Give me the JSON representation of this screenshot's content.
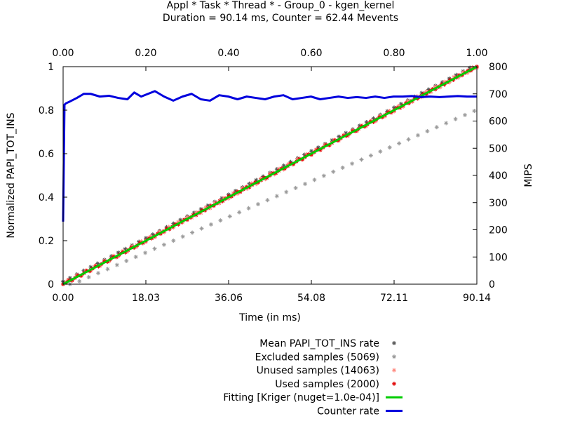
{
  "title_line1": "Appl * Task * Thread * - Group_0 - kgen_kernel",
  "title_line2": "Duration = 90.14 ms, Counter = 62.44 Mevents",
  "chart_data": {
    "type": "scatter",
    "xlabel": "Time (in ms)",
    "ylabel": "Normalized PAPI_TOT_INS",
    "y2label": "MIPS",
    "xlim": [
      0,
      90.14
    ],
    "ylim": [
      0,
      1
    ],
    "x2lim": [
      0,
      1
    ],
    "y2lim": [
      0,
      800
    ],
    "x_ticks": [
      "0.00",
      "18.03",
      "36.06",
      "54.08",
      "72.11",
      "90.14"
    ],
    "x2_ticks": [
      "0.00",
      "0.20",
      "0.40",
      "0.60",
      "0.80",
      "1.00"
    ],
    "y_ticks": [
      "0",
      "0.2",
      "0.4",
      "0.6",
      "0.8",
      "1"
    ],
    "y2_ticks": [
      "0",
      "100",
      "200",
      "300",
      "400",
      "500",
      "600",
      "700",
      "800"
    ],
    "grid": false,
    "legend_position": "bottom-right",
    "series": [
      {
        "name": "Mean PAPI_TOT_INS rate",
        "kind": "points",
        "color": "#555555"
      },
      {
        "name": "Excluded samples (5069)",
        "kind": "points",
        "color": "#999999",
        "description_points": [
          [
            0,
            0
          ],
          [
            90.14,
            0.82
          ]
        ]
      },
      {
        "name": "Unused samples (14063)",
        "kind": "points",
        "color": "#ff8a80"
      },
      {
        "name": "Used samples (2000)",
        "kind": "points",
        "color": "#e00000"
      },
      {
        "name": "Fitting [Kriger (nuget=1.0e-04)]",
        "kind": "line",
        "color": "#00cc00",
        "x": [
          0,
          90.14
        ],
        "y": [
          0,
          1
        ]
      },
      {
        "name": "Counter rate",
        "kind": "line",
        "axis": "y2",
        "color": "#0000dd",
        "x": [
          0,
          0.3,
          0.6,
          1.5,
          3.0,
          4.5,
          6.0,
          8.0,
          10.0,
          12.0,
          14.0,
          15.5,
          17.0,
          18.5,
          20.0,
          22.0,
          24.0,
          26.0,
          28.0,
          30.0,
          32.0,
          34.0,
          36.0,
          38.0,
          40.0,
          42.0,
          44.0,
          46.0,
          48.0,
          50.0,
          52.0,
          54.0,
          56.0,
          58.0,
          60.0,
          62.0,
          64.0,
          66.0,
          68.0,
          70.0,
          72.0,
          74.0,
          76.0,
          78.0,
          80.0,
          82.0,
          84.0,
          86.0,
          88.0,
          90.14
        ],
        "y": [
          230,
          660,
          665,
          672,
          685,
          700,
          700,
          690,
          693,
          685,
          680,
          705,
          690,
          700,
          710,
          690,
          675,
          690,
          700,
          680,
          675,
          695,
          690,
          680,
          690,
          685,
          680,
          690,
          695,
          680,
          685,
          690,
          680,
          685,
          690,
          685,
          688,
          685,
          690,
          685,
          690,
          690,
          692,
          688,
          690,
          688,
          690,
          692,
          690,
          690
        ]
      }
    ]
  }
}
